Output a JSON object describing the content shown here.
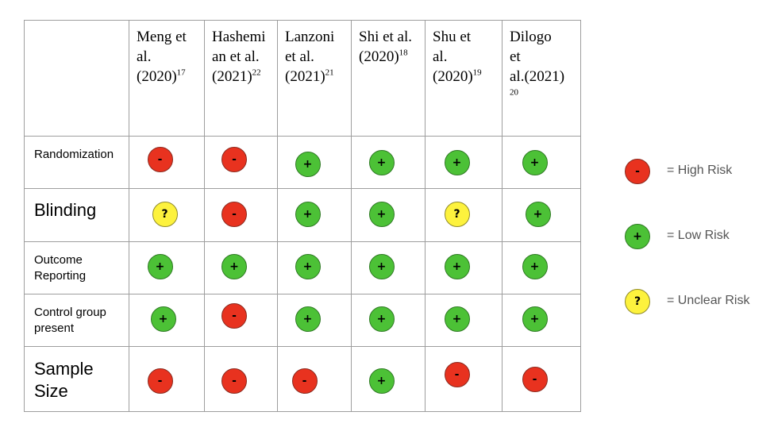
{
  "table": {
    "columns": [
      {
        "name": "Meng et\nal.\n(2020)",
        "ref": "17"
      },
      {
        "name": "Hashemi\nan et al.\n(2021)",
        "ref": "22"
      },
      {
        "name": "Lanzoni\net al.\n(2021)",
        "ref": "21"
      },
      {
        "name": "Shi et al.\n(2020)",
        "ref": "18"
      },
      {
        "name": "Shu et\nal.\n(2020)",
        "ref": "19"
      },
      {
        "name": "Dilogo\net\nal.(2021)\n",
        "ref": "20"
      }
    ],
    "rows": [
      {
        "label": "Randomization",
        "size": "small",
        "ratings": [
          "high",
          "high",
          "low",
          "low",
          "low",
          "low"
        ]
      },
      {
        "label": "Blinding",
        "size": "big",
        "ratings": [
          "unclear",
          "high",
          "low",
          "low",
          "unclear",
          "low"
        ]
      },
      {
        "label": "Outcome\nReporting",
        "size": "small",
        "ratings": [
          "low",
          "low",
          "low",
          "low",
          "low",
          "low"
        ]
      },
      {
        "label": "Control group\npresent",
        "size": "small",
        "ratings": [
          "low",
          "high",
          "low",
          "low",
          "low",
          "low"
        ]
      },
      {
        "label": "Sample\nSize",
        "size": "big",
        "ratings": [
          "high",
          "high",
          "high",
          "low",
          "high",
          "high"
        ]
      }
    ]
  },
  "symbols": {
    "high": "-",
    "low": "+",
    "unclear": "?"
  },
  "legend": [
    {
      "type": "high",
      "label": "= High Risk"
    },
    {
      "type": "low",
      "label": "= Low Risk"
    },
    {
      "type": "unclear",
      "label": "= Unclear Risk"
    }
  ],
  "colors": {
    "high": "#e8321f",
    "low": "#4cc136",
    "unclear": "#fdf23d",
    "grid": "#9e9e9e"
  }
}
